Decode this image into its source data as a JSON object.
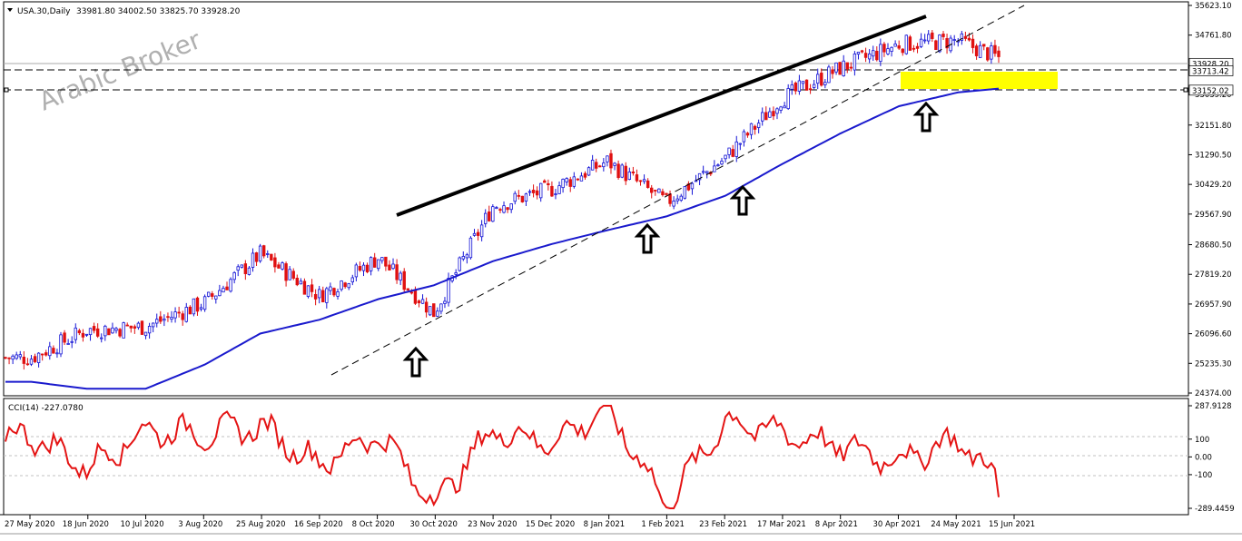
{
  "header": {
    "symbol": "USA.30,Daily",
    "ohlc": "33981.80 34002.50 33825.70 33928.20"
  },
  "watermark": "Arabic Broker",
  "price_axis": {
    "ticks": [
      "35623.10",
      "34761.80",
      "33900.50",
      "33039.20",
      "32151.80",
      "31290.50",
      "30429.20",
      "29567.90",
      "28680.50",
      "27819.20",
      "26957.90",
      "26096.60",
      "25235.30",
      "24374.00"
    ],
    "labels": [
      {
        "text": "33928.20",
        "kind": "current"
      },
      {
        "text": "33713.42",
        "kind": "line"
      },
      {
        "text": "33152.02",
        "kind": "line"
      }
    ]
  },
  "cci_axis": {
    "ticks": [
      "287.9128",
      "100",
      "0.00",
      "-100",
      "-289.4459"
    ]
  },
  "cci_label": "CCI(14) -227.0780",
  "date_axis": {
    "ticks": [
      "27 May 2020",
      "18 Jun 2020",
      "10 Jul 2020",
      "3 Aug 2020",
      "25 Aug 2020",
      "16 Sep 2020",
      "8 Oct 2020",
      "30 Oct 2020",
      "23 Nov 2020",
      "15 Dec 2020",
      "8 Jan 2021",
      "1 Feb 2021",
      "23 Feb 2021",
      "17 Mar 2021",
      "8 Apr 2021",
      "30 Apr 2021",
      "24 May 2021",
      "15 Jun 2021"
    ]
  },
  "colors": {
    "bull": "#1414d6",
    "bear": "#e01010",
    "ma": "#1a1acd",
    "cci": "#e41414",
    "trend": "#000000",
    "zone": "#ffff00",
    "frame": "#000000"
  },
  "chart_data": [
    {
      "type": "candlestick",
      "title": "USA.30,Daily",
      "x": [
        "27 May 2020",
        "18 Jun 2020",
        "10 Jul 2020",
        "3 Aug 2020",
        "25 Aug 2020",
        "16 Sep 2020",
        "8 Oct 2020",
        "30 Oct 2020",
        "23 Nov 2020",
        "15 Dec 2020",
        "8 Jan 2021",
        "1 Feb 2021",
        "23 Feb 2021",
        "17 Mar 2021",
        "8 Apr 2021",
        "30 Apr 2021",
        "24 May 2021",
        "15 Jun 2021"
      ],
      "close_approx": [
        25400,
        26200,
        26300,
        27000,
        28400,
        27200,
        28300,
        26700,
        29800,
        30300,
        31100,
        29900,
        31200,
        32900,
        33800,
        34500,
        34600,
        33928
      ],
      "ylim": [
        24374.0,
        35623.1
      ],
      "series": [
        {
          "values": [
            25400,
            26200,
            26300,
            27000,
            28400,
            27200,
            28300,
            26700,
            29800,
            30300,
            31100,
            29900,
            31200,
            32900,
            33800,
            34500,
            34600,
            33928
          ]
        },
        {
          "values": [
            24700,
            24500,
            24500,
            25200,
            26100,
            26500,
            27100,
            27500,
            28200,
            28700,
            29100,
            29500,
            30100,
            31000,
            31900,
            32700,
            33100,
            33250
          ]
        }
      ],
      "horizontal_levels": [
        33713.42,
        33152.02
      ],
      "support_zone": [
        33152.02,
        33713.42
      ]
    },
    {
      "type": "line",
      "title": "CCI(14) -227.0780",
      "x": [
        "27 May 2020",
        "18 Jun 2020",
        "10 Jul 2020",
        "3 Aug 2020",
        "25 Aug 2020",
        "16 Sep 2020",
        "8 Oct 2020",
        "30 Oct 2020",
        "23 Nov 2020",
        "15 Dec 2020",
        "8 Jan 2021",
        "1 Feb 2021",
        "23 Feb 2021",
        "17 Mar 2021",
        "8 Apr 2021",
        "30 Apr 2021",
        "24 May 2021",
        "15 Jun 2021"
      ],
      "ylim": [
        -289.4459,
        287.9128
      ],
      "levels": [
        100,
        0,
        -100
      ],
      "series": [
        {
          "values": [
            120,
            -60,
            150,
            130,
            170,
            -40,
            130,
            -260,
            150,
            80,
            280,
            -270,
            200,
            140,
            60,
            -20,
            100,
            -227.078
          ]
        }
      ]
    }
  ]
}
